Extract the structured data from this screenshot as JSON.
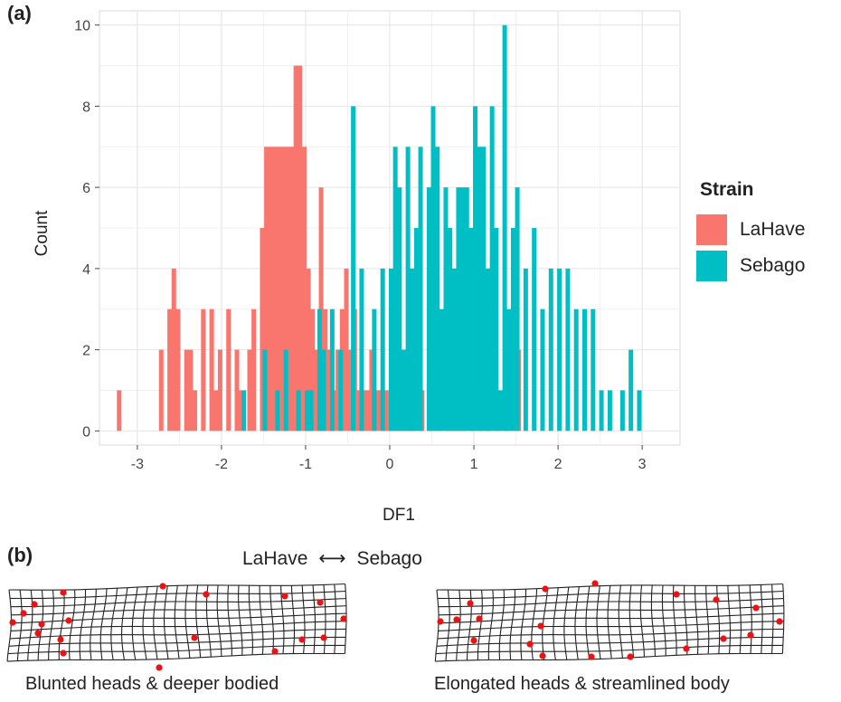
{
  "panels": {
    "a": "(a)",
    "b": "(b)"
  },
  "chart_data": {
    "type": "bar",
    "xlabel": "DF1",
    "ylabel": "Count",
    "xlim": [
      -3.45,
      3.45
    ],
    "ylim": [
      -0.35,
      10.35
    ],
    "x_ticks": [
      -3,
      -2,
      -1,
      0,
      1,
      2,
      3
    ],
    "y_ticks": [
      0,
      2,
      4,
      6,
      8,
      10
    ],
    "grid": true,
    "legend": {
      "title": "Strain",
      "position": "right"
    },
    "series": [
      {
        "name": "LaHave",
        "color": "#F8766D",
        "x": [
          -3.2,
          -2.7,
          -2.6,
          -2.55,
          -2.5,
          -2.4,
          -2.35,
          -2.3,
          -2.2,
          -2.1,
          -2.05,
          -2.0,
          -1.9,
          -1.8,
          -1.75,
          -1.65,
          -1.6,
          -1.5,
          -1.45,
          -1.4,
          -1.35,
          -1.3,
          -1.25,
          -1.2,
          -1.15,
          -1.1,
          -1.05,
          -1.0,
          -0.95,
          -0.9,
          -0.85,
          -0.8,
          -0.75,
          -0.7,
          -0.65,
          -0.6,
          -0.55,
          -0.5,
          -0.45,
          -0.4,
          -0.35,
          -0.3,
          -0.25,
          -0.2,
          -0.15,
          -0.1,
          -0.05,
          0.0,
          0.05,
          0.1,
          0.15,
          0.2,
          0.25,
          0.3,
          0.4,
          0.5,
          0.6,
          0.7,
          0.75,
          0.8,
          0.85,
          0.9,
          1.0,
          1.1,
          1.2,
          1.3,
          1.4,
          1.55
        ],
        "values": [
          1,
          2,
          3,
          4,
          3,
          2,
          2,
          1,
          3,
          3,
          1,
          2,
          3,
          2,
          1,
          2,
          3,
          5,
          7,
          7,
          7,
          7,
          7,
          7,
          7,
          9,
          9,
          7,
          4,
          3,
          2,
          6,
          3,
          2,
          1,
          2,
          3,
          4,
          2,
          3,
          1,
          1,
          1,
          2,
          1,
          1,
          1,
          1,
          1,
          3,
          1,
          2,
          1,
          2,
          1,
          1,
          1,
          4,
          2,
          3,
          1,
          1,
          1,
          1,
          1,
          1,
          1,
          2
        ]
      },
      {
        "name": "Sebago",
        "color": "#00BFC4",
        "x": [
          -1.75,
          -1.5,
          -1.35,
          -1.25,
          -1.1,
          -1.0,
          -0.95,
          -0.85,
          -0.8,
          -0.7,
          -0.6,
          -0.45,
          -0.35,
          -0.2,
          -0.1,
          0.0,
          0.05,
          0.1,
          0.15,
          0.2,
          0.25,
          0.3,
          0.35,
          0.45,
          0.5,
          0.55,
          0.6,
          0.65,
          0.7,
          0.75,
          0.8,
          0.85,
          0.9,
          0.95,
          1.0,
          1.05,
          1.1,
          1.15,
          1.2,
          1.25,
          1.3,
          1.35,
          1.4,
          1.45,
          1.5,
          1.6,
          1.7,
          1.8,
          1.9,
          2.0,
          2.1,
          2.2,
          2.3,
          2.4,
          2.5,
          2.6,
          2.75,
          2.85,
          2.95
        ],
        "values": [
          1,
          2,
          1,
          2,
          1,
          1,
          1,
          3,
          2,
          3,
          2,
          8,
          4,
          3,
          4,
          4,
          7,
          6,
          2,
          7,
          4,
          5,
          7,
          6,
          8,
          7,
          3,
          6,
          5,
          4,
          6,
          6,
          6,
          5,
          8,
          7,
          7,
          4,
          8,
          5,
          1,
          10,
          3,
          5,
          6,
          4,
          5,
          3,
          4,
          4,
          4,
          3,
          3,
          3,
          1,
          1,
          1,
          2,
          1
        ]
      }
    ]
  },
  "figure_b": {
    "left_strain": "LaHave",
    "right_strain": "Sebago",
    "arrow": "⟷",
    "left_caption": "Blunted heads & deeper bodied",
    "right_caption": "Elongated heads & streamlined body"
  }
}
